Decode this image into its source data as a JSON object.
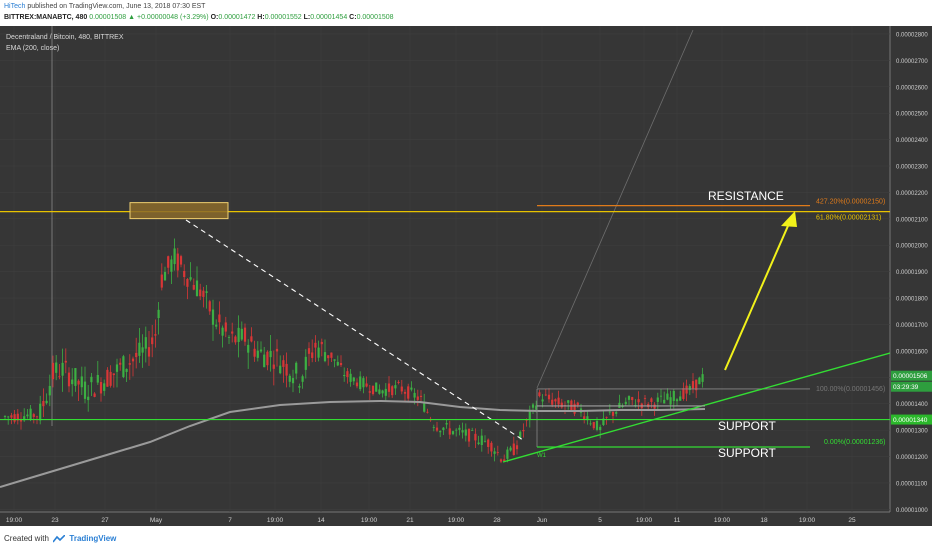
{
  "header": {
    "author": "HiTech",
    "publish_text": "published on TradingView.com, June 13, 2018 07:30 EST",
    "symbol_line": "BITTREX:MANABTC, 480",
    "last": "0.00001508",
    "change": "▲ +0.00000048 (+3.29%)",
    "open_label": "O:",
    "open": "0.00001472",
    "high_label": "H:",
    "high": "0.00001552",
    "low_label": "L:",
    "low": "0.00001454",
    "close_label": "C:",
    "close": "0.00001508"
  },
  "footer": {
    "created_with": "Created with",
    "brand": "TradingView"
  },
  "colors": {
    "background": "#363636",
    "up": "#3cb043",
    "down": "#d93636",
    "ema": "#9a9a9a",
    "resistance": "#e8c200",
    "support": "#33dd33",
    "fib_orange": "#e07b1a",
    "arrow": "#f2f21a"
  },
  "chart_data": {
    "type": "candlestick",
    "title": "Decentraland / Bitcoin, 480, BITTREX",
    "indicator_label": "EMA (200, close)",
    "ylim": [
      9.9e-06,
      2.83e-05
    ],
    "y_ticks": [
      "0.00002800",
      "0.00002700",
      "0.00002600",
      "0.00002500",
      "0.00002400",
      "0.00002300",
      "0.00002200",
      "0.00002100",
      "0.00002000",
      "0.00001900",
      "0.00001800",
      "0.00001700",
      "0.00001600",
      "0.00001500",
      "0.00001400",
      "0.00001300",
      "0.00001200",
      "0.00001100",
      "0.00001000"
    ],
    "x_ticks": [
      "19:00",
      "23",
      "27",
      "May",
      "7",
      "19:00",
      "14",
      "19:00",
      "21",
      "19:00",
      "28",
      "Jun",
      "5",
      "19:00",
      "11",
      "19:00",
      "18",
      "19:00",
      "25"
    ],
    "annotations": {
      "resistance_label": "RESISTANCE",
      "support_label_1": "SUPPORT",
      "support_label_2": "SUPPORT",
      "fib_4272": "427.20%(0.00002150)",
      "fib_618": "61.80%(0.00002131)",
      "fib_100": "100.00%(0.00001456)",
      "fib_0": "0.00%(0.00001236)",
      "price_current": "0.00001506",
      "countdown": "03:29:39",
      "price_support": "0.00001340",
      "wave_label": "W1"
    },
    "levels": {
      "resistance": 2.131e-05,
      "fib_4272": 2.15e-05,
      "fib_618": 2.131e-05,
      "fib_100": 1.456e-05,
      "support_1": 1.34e-05,
      "support_2": 1.236e-05,
      "current": 1.506e-05
    }
  }
}
